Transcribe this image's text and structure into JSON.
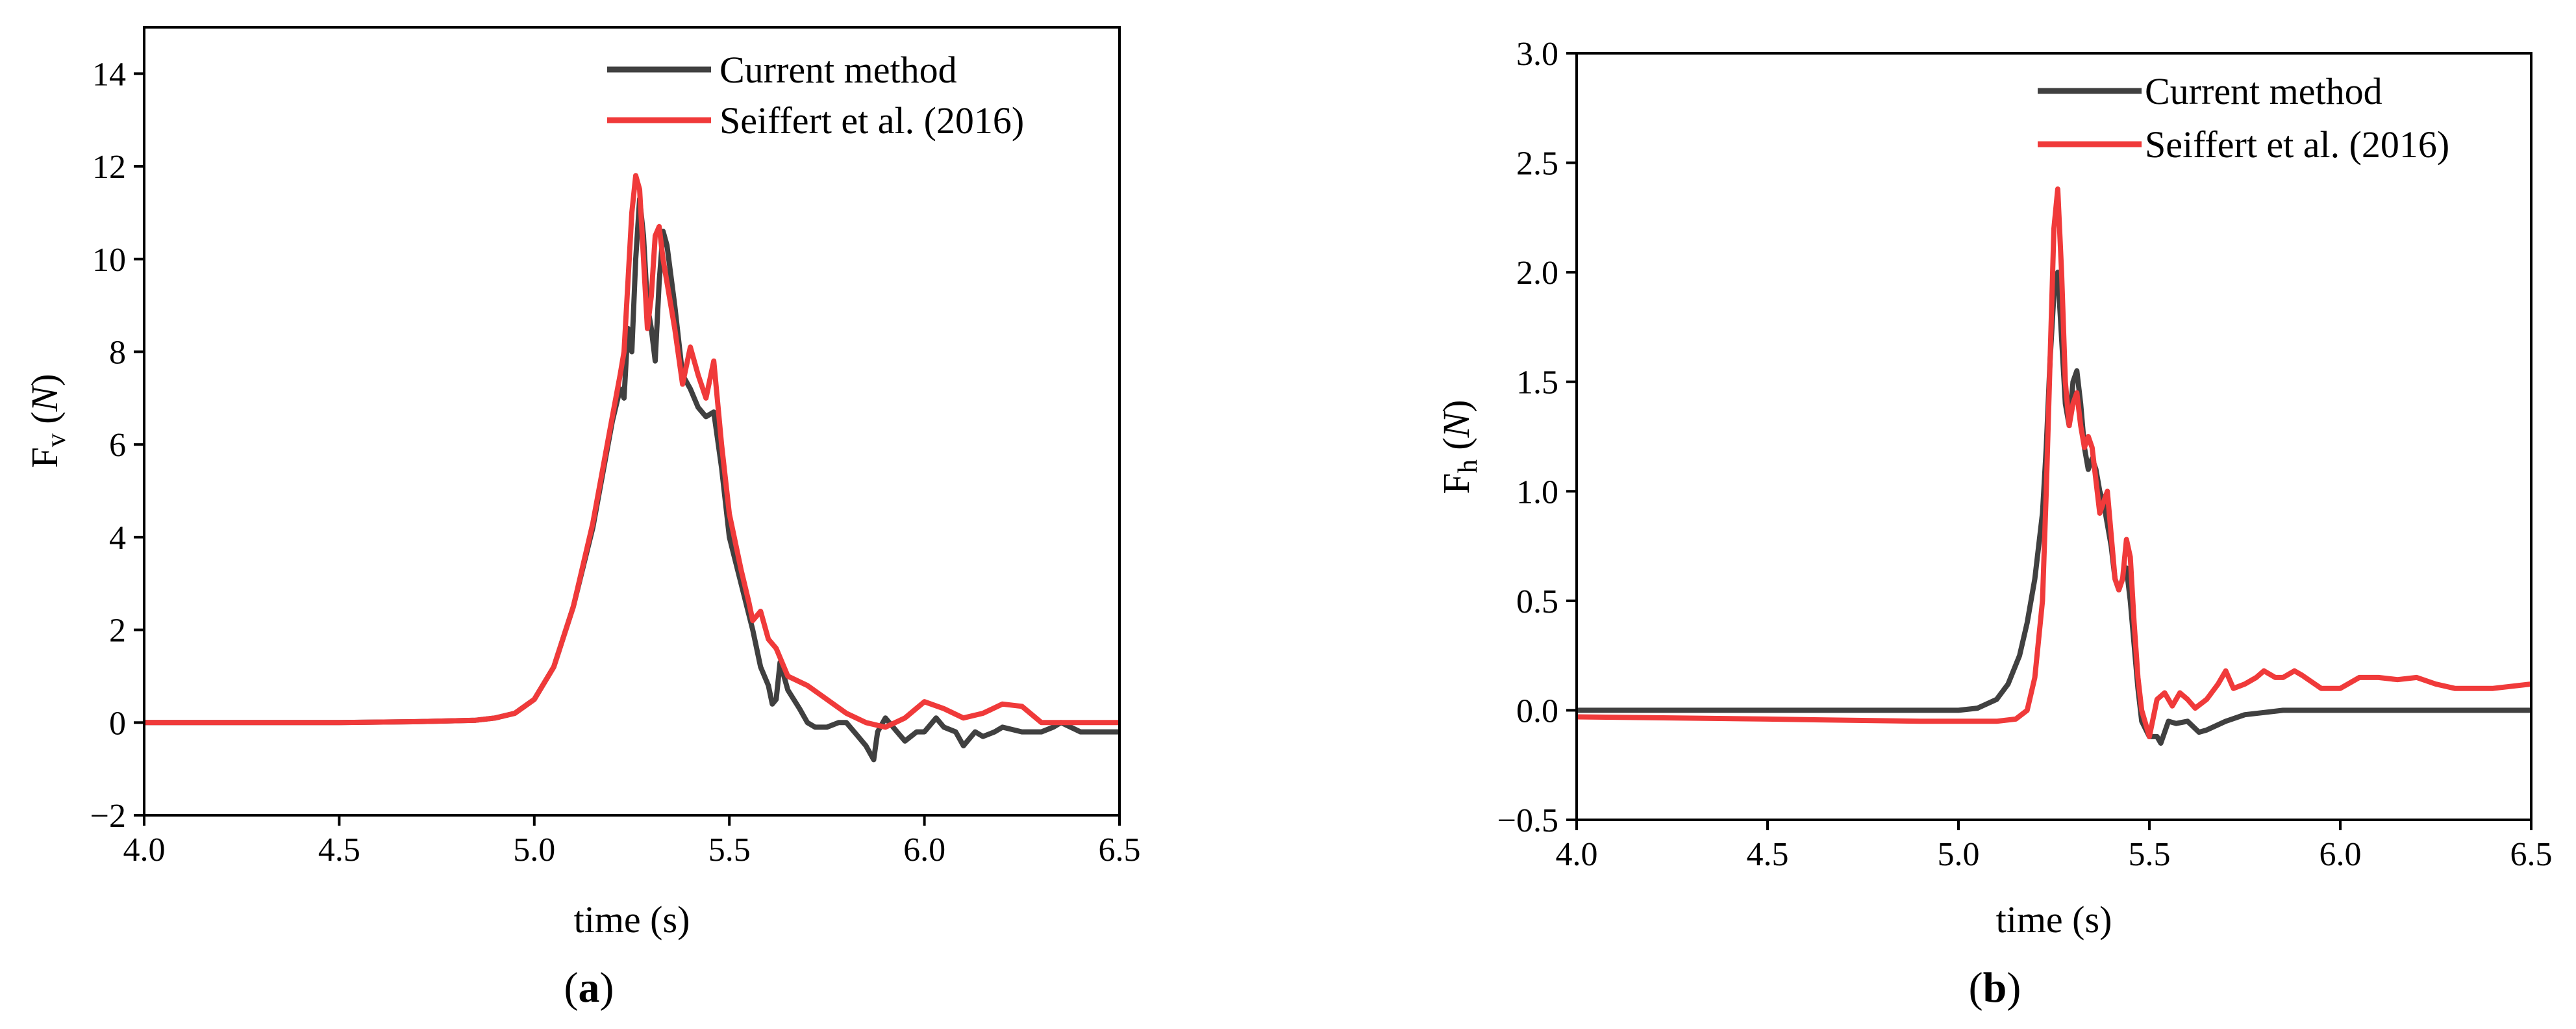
{
  "colors": {
    "current": "#404040",
    "seiffert": "#f03a3a",
    "axis": "#000000"
  },
  "chart_data": [
    {
      "type": "line",
      "panel": "a",
      "caption": {
        "open": "(",
        "letter": "a",
        "close": ")"
      },
      "xlabel": "time (s)",
      "ylabel": {
        "main": "F",
        "sub": "v",
        "unit_open": " (",
        "unit": "N",
        "unit_close": ")"
      },
      "xlim": [
        4.0,
        6.5
      ],
      "ylim": [
        -2,
        15
      ],
      "xticks": [
        "4.0",
        "4.5",
        "5.0",
        "5.5",
        "6.0",
        "6.5"
      ],
      "yticks": [
        "-2",
        "0",
        "2",
        "4",
        "6",
        "8",
        "10",
        "12",
        "14"
      ],
      "ytick_values": [
        -2,
        0,
        2,
        4,
        6,
        8,
        10,
        12,
        14
      ],
      "xtick_values": [
        4.0,
        4.5,
        5.0,
        5.5,
        6.0,
        6.5
      ],
      "legend_position": "top-right",
      "series": [
        {
          "name": "Current method",
          "color_key": "current",
          "x": [
            4.0,
            4.5,
            4.7,
            4.85,
            4.9,
            4.95,
            5.0,
            5.05,
            5.1,
            5.15,
            5.2,
            5.22,
            5.23,
            5.24,
            5.25,
            5.26,
            5.27,
            5.28,
            5.29,
            5.3,
            5.31,
            5.32,
            5.33,
            5.34,
            5.36,
            5.38,
            5.4,
            5.42,
            5.44,
            5.46,
            5.48,
            5.5,
            5.53,
            5.56,
            5.58,
            5.6,
            5.61,
            5.62,
            5.63,
            5.65,
            5.68,
            5.7,
            5.72,
            5.75,
            5.78,
            5.8,
            5.83,
            5.85,
            5.87,
            5.88,
            5.9,
            5.93,
            5.95,
            5.98,
            6.0,
            6.03,
            6.05,
            6.08,
            6.1,
            6.13,
            6.15,
            6.18,
            6.2,
            6.25,
            6.3,
            6.33,
            6.35,
            6.4,
            6.45,
            6.5
          ],
          "y": [
            0,
            0,
            0.02,
            0.05,
            0.1,
            0.2,
            0.5,
            1.2,
            2.5,
            4.2,
            6.5,
            7.2,
            7.0,
            8.5,
            8.0,
            10.0,
            11.3,
            10.5,
            9.0,
            8.5,
            7.8,
            9.5,
            10.6,
            10.3,
            9.0,
            7.5,
            7.2,
            6.8,
            6.6,
            6.7,
            5.5,
            4.0,
            3.0,
            2.0,
            1.2,
            0.8,
            0.4,
            0.5,
            1.3,
            0.7,
            0.3,
            0.0,
            -0.1,
            -0.1,
            0.0,
            0.0,
            -0.3,
            -0.5,
            -0.8,
            -0.2,
            0.1,
            -0.2,
            -0.4,
            -0.2,
            -0.2,
            0.1,
            -0.1,
            -0.2,
            -0.5,
            -0.2,
            -0.3,
            -0.2,
            -0.1,
            -0.2,
            -0.2,
            -0.1,
            0.0,
            -0.2,
            -0.2,
            -0.2
          ]
        },
        {
          "name": "Seiffert et al. (2016)",
          "color_key": "seiffert",
          "x": [
            4.0,
            4.5,
            4.7,
            4.85,
            4.9,
            4.95,
            5.0,
            5.05,
            5.1,
            5.15,
            5.2,
            5.22,
            5.23,
            5.24,
            5.25,
            5.26,
            5.27,
            5.28,
            5.29,
            5.3,
            5.31,
            5.32,
            5.33,
            5.34,
            5.36,
            5.38,
            5.4,
            5.42,
            5.44,
            5.46,
            5.48,
            5.5,
            5.53,
            5.55,
            5.56,
            5.58,
            5.6,
            5.62,
            5.65,
            5.7,
            5.75,
            5.8,
            5.85,
            5.9,
            5.95,
            6.0,
            6.05,
            6.1,
            6.15,
            6.2,
            6.25,
            6.3,
            6.35,
            6.4,
            6.5
          ],
          "y": [
            0,
            0,
            0.02,
            0.05,
            0.1,
            0.2,
            0.5,
            1.2,
            2.5,
            4.3,
            6.6,
            7.5,
            8.0,
            9.5,
            11.0,
            11.8,
            11.5,
            10.0,
            8.5,
            9.2,
            10.5,
            10.7,
            10.0,
            9.5,
            8.5,
            7.3,
            8.1,
            7.5,
            7.0,
            7.8,
            6.0,
            4.5,
            3.3,
            2.6,
            2.2,
            2.4,
            1.8,
            1.6,
            1.0,
            0.8,
            0.5,
            0.2,
            0.0,
            -0.1,
            0.1,
            0.45,
            0.3,
            0.1,
            0.2,
            0.4,
            0.35,
            0.0,
            0.0,
            0.0,
            0.0
          ]
        }
      ]
    },
    {
      "type": "line",
      "panel": "b",
      "caption": {
        "open": "(",
        "letter": "b",
        "close": ")"
      },
      "xlabel": "time (s)",
      "ylabel": {
        "main": "F",
        "sub": "h",
        "unit_open": " (",
        "unit": "N",
        "unit_close": ")"
      },
      "xlim": [
        4.0,
        6.5
      ],
      "ylim": [
        -0.5,
        3.0
      ],
      "xticks": [
        "4.0",
        "4.5",
        "5.0",
        "5.5",
        "6.0",
        "6.5"
      ],
      "yticks": [
        "-0.5",
        "0.0",
        "0.5",
        "1.0",
        "1.5",
        "2.0",
        "2.5",
        "3.0"
      ],
      "ytick_values": [
        -0.5,
        0.0,
        0.5,
        1.0,
        1.5,
        2.0,
        2.5,
        3.0
      ],
      "xtick_values": [
        4.0,
        4.5,
        5.0,
        5.5,
        6.0,
        6.5
      ],
      "legend_position": "top-right",
      "series": [
        {
          "name": "Current method",
          "color_key": "current",
          "x": [
            4.0,
            4.5,
            4.9,
            5.0,
            5.05,
            5.1,
            5.13,
            5.16,
            5.18,
            5.2,
            5.22,
            5.23,
            5.24,
            5.25,
            5.26,
            5.27,
            5.28,
            5.29,
            5.3,
            5.31,
            5.32,
            5.33,
            5.34,
            5.35,
            5.36,
            5.37,
            5.38,
            5.39,
            5.4,
            5.41,
            5.42,
            5.43,
            5.44,
            5.45,
            5.46,
            5.47,
            5.48,
            5.5,
            5.52,
            5.53,
            5.55,
            5.57,
            5.6,
            5.63,
            5.65,
            5.7,
            5.75,
            5.8,
            5.85,
            5.9,
            6.0,
            6.1,
            6.2,
            6.3,
            6.4,
            6.5
          ],
          "y": [
            0.0,
            0.0,
            0.0,
            0.0,
            0.01,
            0.05,
            0.12,
            0.25,
            0.4,
            0.6,
            0.9,
            1.2,
            1.6,
            1.9,
            2.0,
            1.7,
            1.4,
            1.3,
            1.5,
            1.55,
            1.4,
            1.2,
            1.1,
            1.15,
            1.1,
            1.0,
            0.95,
            0.85,
            0.75,
            0.6,
            0.55,
            0.6,
            0.65,
            0.5,
            0.3,
            0.1,
            -0.05,
            -0.12,
            -0.12,
            -0.15,
            -0.05,
            -0.06,
            -0.05,
            -0.1,
            -0.09,
            -0.05,
            -0.02,
            -0.01,
            0.0,
            0.0,
            0.0,
            0.0,
            0.0,
            0.0,
            0.0,
            0.0
          ]
        },
        {
          "name": "Seiffert et al. (2016)",
          "color_key": "seiffert",
          "x": [
            4.0,
            4.5,
            4.9,
            5.0,
            5.1,
            5.15,
            5.18,
            5.2,
            5.22,
            5.23,
            5.24,
            5.25,
            5.26,
            5.27,
            5.28,
            5.29,
            5.3,
            5.31,
            5.32,
            5.33,
            5.34,
            5.35,
            5.36,
            5.37,
            5.38,
            5.39,
            5.4,
            5.41,
            5.42,
            5.43,
            5.44,
            5.45,
            5.46,
            5.47,
            5.48,
            5.5,
            5.52,
            5.54,
            5.56,
            5.58,
            5.6,
            5.62,
            5.65,
            5.68,
            5.7,
            5.72,
            5.75,
            5.78,
            5.8,
            5.83,
            5.85,
            5.88,
            5.9,
            5.95,
            6.0,
            6.05,
            6.1,
            6.15,
            6.2,
            6.25,
            6.3,
            6.4,
            6.5
          ],
          "y": [
            -0.03,
            -0.04,
            -0.05,
            -0.05,
            -0.05,
            -0.04,
            0.0,
            0.15,
            0.5,
            1.0,
            1.6,
            2.2,
            2.38,
            2.0,
            1.5,
            1.3,
            1.4,
            1.45,
            1.3,
            1.2,
            1.25,
            1.2,
            1.05,
            0.9,
            0.95,
            1.0,
            0.8,
            0.6,
            0.55,
            0.6,
            0.78,
            0.7,
            0.4,
            0.15,
            0.0,
            -0.12,
            0.05,
            0.08,
            0.02,
            0.08,
            0.05,
            0.01,
            0.05,
            0.12,
            0.18,
            0.1,
            0.12,
            0.15,
            0.18,
            0.15,
            0.15,
            0.18,
            0.16,
            0.1,
            0.1,
            0.15,
            0.15,
            0.14,
            0.15,
            0.12,
            0.1,
            0.1,
            0.12
          ]
        }
      ]
    }
  ]
}
